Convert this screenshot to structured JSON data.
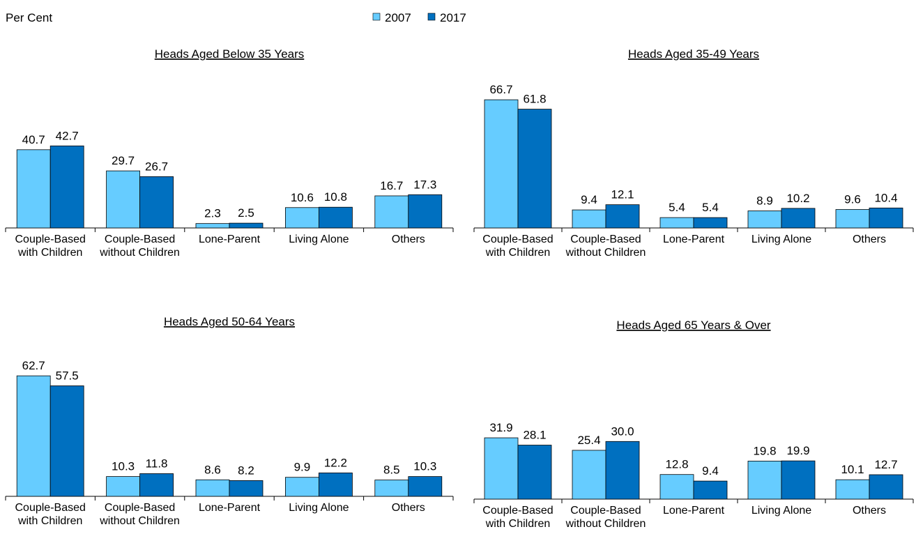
{
  "y_label": "Per Cent",
  "legend": [
    {
      "name": "2007",
      "color": "#66ccff"
    },
    {
      "name": "2017",
      "color": "#0070c0"
    }
  ],
  "chart_data": [
    {
      "type": "bar",
      "title": "Heads Aged Below 35 Years",
      "categories": [
        "Couple-Based with Children",
        "Couple-Based without Children",
        "Lone-Parent",
        "Living Alone",
        "Others"
      ],
      "series": [
        {
          "values": [
            40.7,
            29.7,
            2.3,
            10.6,
            16.7
          ]
        },
        {
          "values": [
            42.7,
            26.7,
            2.5,
            10.8,
            17.3
          ]
        }
      ],
      "ylim": [
        0,
        70
      ]
    },
    {
      "type": "bar",
      "title": "Heads Aged 35-49 Years",
      "categories": [
        "Couple-Based with Children",
        "Couple-Based without Children",
        "Lone-Parent",
        "Living Alone",
        "Others"
      ],
      "series": [
        {
          "values": [
            66.7,
            9.4,
            5.4,
            8.9,
            9.6
          ]
        },
        {
          "values": [
            61.8,
            12.1,
            5.4,
            10.2,
            10.4
          ]
        }
      ],
      "ylim": [
        0,
        70
      ]
    },
    {
      "type": "bar",
      "title": "Heads Aged 50-64 Years",
      "categories": [
        "Couple-Based with Children",
        "Couple-Based without Children",
        "Lone-Parent",
        "Living Alone",
        "Others"
      ],
      "series": [
        {
          "values": [
            62.7,
            10.3,
            8.6,
            9.9,
            8.5
          ]
        },
        {
          "values": [
            57.5,
            11.8,
            8.2,
            12.2,
            10.3
          ]
        }
      ],
      "ylim": [
        0,
        70
      ]
    },
    {
      "type": "bar",
      "title": "Heads Aged 65 Years & Over",
      "categories": [
        "Couple-Based with Children",
        "Couple-Based without Children",
        "Lone-Parent",
        "Living Alone",
        "Others"
      ],
      "series": [
        {
          "values": [
            31.9,
            25.4,
            12.8,
            19.8,
            10.1
          ]
        },
        {
          "values": [
            28.1,
            30,
            9.4,
            19.9,
            12.7
          ],
          "value_labels": [
            "28.1",
            "30.0",
            "9.4",
            "19.9",
            "12.7"
          ]
        }
      ],
      "ylim": [
        0,
        70
      ]
    }
  ]
}
